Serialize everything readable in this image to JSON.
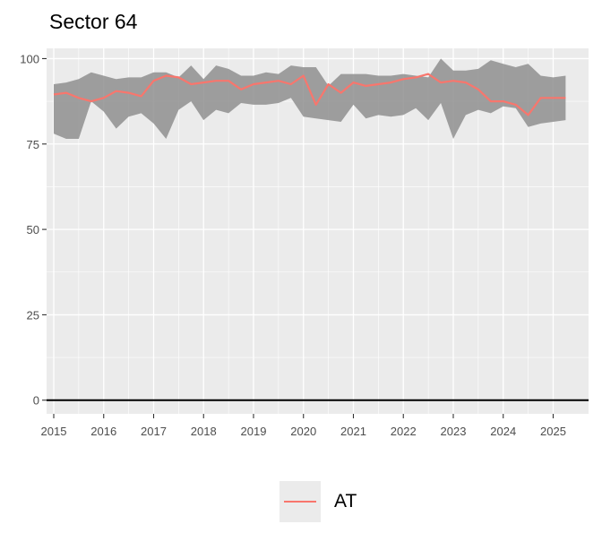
{
  "chart_data": {
    "type": "line",
    "title": "Sector 64",
    "xlabel": "",
    "ylabel": "",
    "xlim": [
      2015,
      2025.35
    ],
    "ylim": [
      -4,
      103
    ],
    "x_ticks": [
      "2015",
      "2016",
      "2017",
      "2018",
      "2019",
      "2020",
      "2021",
      "2022",
      "2023",
      "2024",
      "2025"
    ],
    "y_ticks": [
      "0",
      "25",
      "50",
      "75",
      "100"
    ],
    "hline": 0,
    "grid": true,
    "legend_position": "bottom",
    "colors": {
      "series": "#F8766D",
      "band": "#8f8f8f",
      "panel": "#ebebeb",
      "grid": "#ffffff"
    },
    "x": [
      2015.0,
      2015.25,
      2015.5,
      2015.75,
      2016.0,
      2016.25,
      2016.5,
      2016.75,
      2017.0,
      2017.25,
      2017.5,
      2017.75,
      2018.0,
      2018.25,
      2018.5,
      2018.75,
      2019.0,
      2019.25,
      2019.5,
      2019.75,
      2020.0,
      2020.25,
      2020.5,
      2020.75,
      2021.0,
      2021.25,
      2021.5,
      2021.75,
      2022.0,
      2022.25,
      2022.5,
      2022.75,
      2023.0,
      2023.25,
      2023.5,
      2023.75,
      2024.0,
      2024.25,
      2024.5,
      2024.75,
      2025.0,
      2025.25
    ],
    "series": [
      {
        "name": "AT",
        "values": [
          89.5,
          90,
          88.5,
          87.5,
          88.5,
          90.5,
          90,
          89,
          93.5,
          95,
          94.5,
          92.5,
          93,
          93.5,
          93.5,
          91,
          92.5,
          93,
          93.5,
          92.5,
          95,
          86.5,
          92.5,
          90,
          93,
          92,
          92.5,
          93,
          94,
          94.5,
          95.5,
          93,
          93.5,
          93,
          91,
          87.5,
          87.5,
          86.5,
          83.5,
          88.5,
          88.5,
          88.5
        ]
      }
    ],
    "band": {
      "upper": [
        92.5,
        93,
        94,
        96,
        95,
        94,
        94.5,
        94.5,
        96,
        96,
        94.5,
        98,
        94,
        98,
        97,
        95,
        95,
        96,
        95.5,
        98,
        97.5,
        97.5,
        92,
        95.5,
        95.5,
        95.5,
        95,
        95,
        95.5,
        95,
        94.5,
        100,
        96.5,
        96.5,
        97,
        99.5,
        98.5,
        97.5,
        98.5,
        95,
        94.5,
        95
      ],
      "lower": [
        78,
        76.5,
        76.5,
        87.5,
        84.5,
        79.5,
        83,
        84,
        81,
        76.5,
        85,
        87.5,
        82,
        85,
        84,
        87,
        86.5,
        86.5,
        87,
        88.5,
        83,
        82.5,
        82,
        81.5,
        86.5,
        82.5,
        83.5,
        83,
        83.5,
        85.5,
        82,
        87,
        76.5,
        83.5,
        85,
        84,
        86,
        85.5,
        80,
        81,
        81.5,
        82
      ]
    }
  },
  "legend": {
    "label": "AT"
  }
}
